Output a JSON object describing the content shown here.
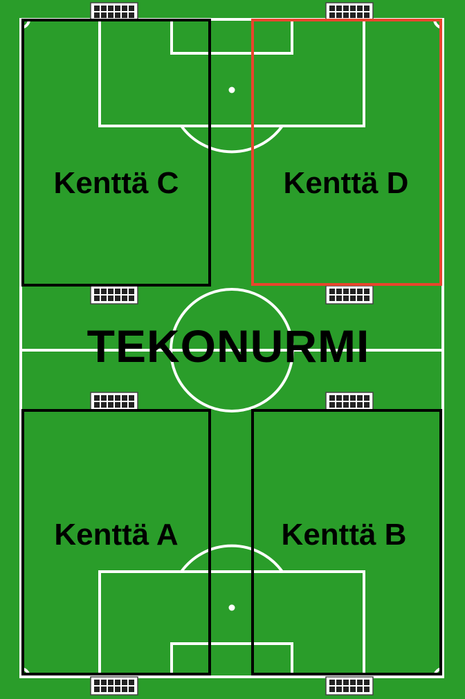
{
  "title": "TEKONURMI",
  "fields": {
    "c": {
      "label": "Kenttä C"
    },
    "d": {
      "label": "Kenttä D"
    },
    "a": {
      "label": "Kenttä A"
    },
    "b": {
      "label": "Kenttä B"
    }
  },
  "colors": {
    "grass": "#2a9d2a",
    "lines": "#ffffff",
    "field_border": "#000000",
    "highlight": "#e8452c"
  },
  "highlighted_field": "d"
}
